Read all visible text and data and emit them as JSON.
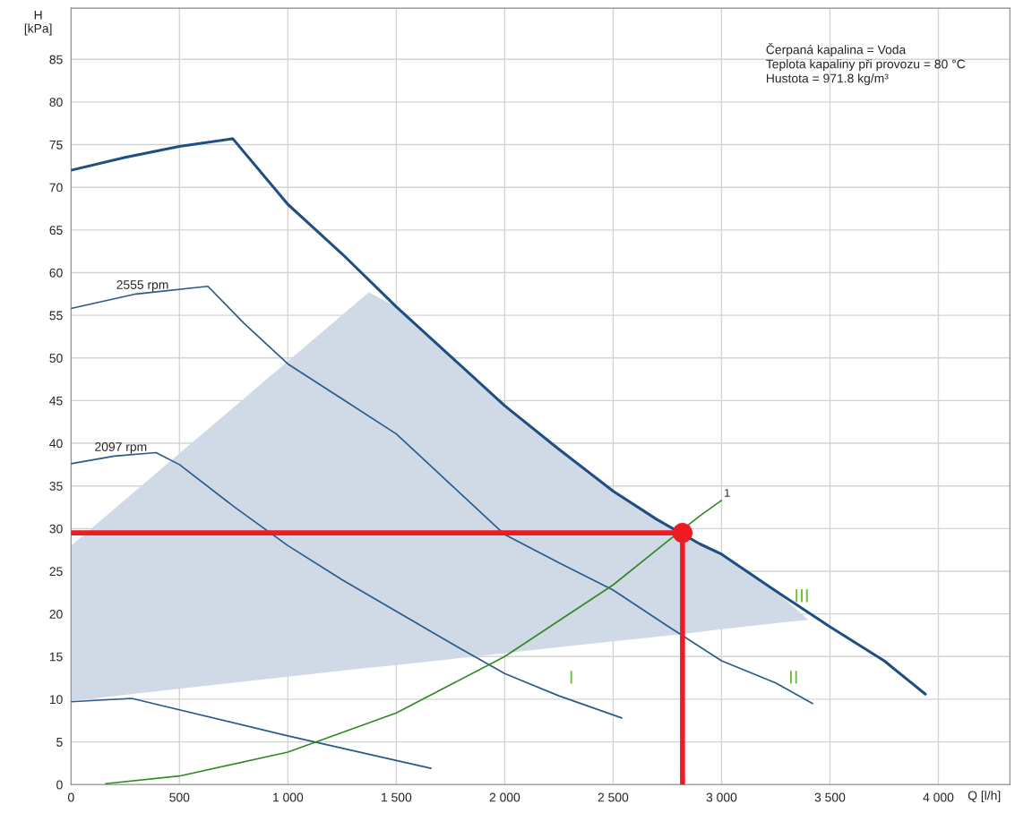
{
  "chart_data": {
    "type": "line",
    "xlabel": "Q [l/h]",
    "ylabel": "H\n[kPa]",
    "xlim": [
      0,
      4330
    ],
    "ylim": [
      0,
      91
    ],
    "xticks": [
      0,
      500,
      {
        "value": 1000,
        "label": "1 000"
      },
      {
        "value": 1500,
        "label": "1 500"
      },
      {
        "value": 2000,
        "label": "2 000"
      },
      {
        "value": 2500,
        "label": "2 500"
      },
      {
        "value": 3000,
        "label": "3 000"
      },
      {
        "value": 3500,
        "label": "3 500"
      },
      {
        "value": 4000,
        "label": "4 000"
      }
    ],
    "yticks": [
      0,
      5,
      10,
      15,
      20,
      25,
      30,
      35,
      40,
      45,
      50,
      55,
      60,
      65,
      70,
      75,
      80,
      85
    ],
    "grid": true,
    "series": [
      {
        "color": "#cfdae6",
        "x": [
          0,
          1373,
          1500,
          1750,
          2000,
          2250,
          2500,
          2700,
          2900,
          3000,
          3250,
          3400
        ],
        "values": [
          null,
          null,
          null,
          null,
          null,
          null,
          null,
          null,
          null,
          null,
          null,
          null
        ],
        "upper": [
          28,
          57.7,
          56,
          50.2,
          44.4,
          39.3,
          34.4,
          31.1,
          28.2,
          27,
          22.7,
          19.3
        ],
        "lower": [
          9.8,
          13.7,
          14,
          14.7,
          15.4,
          16.1,
          16.8,
          17.3,
          17.9,
          18.2,
          18.9,
          19.3
        ]
      },
      {
        "color": "#1f4e82",
        "x": [
          0,
          250,
          500,
          746,
          1000,
          1250,
          1500,
          1750,
          2000,
          2250,
          2500,
          2700,
          2900,
          3000,
          3250,
          3500,
          3750,
          3940
        ],
        "values": [
          72,
          73.5,
          74.8,
          75.7,
          68,
          62.2,
          56,
          50.2,
          44.4,
          39.3,
          34.4,
          31.1,
          28.2,
          27,
          22.7,
          18.5,
          14.5,
          10.6
        ]
      },
      {
        "name": "2555 rpm",
        "color": "#2a5a8c",
        "x": [
          0,
          300,
          631,
          800,
          1000,
          1250,
          1500,
          1750,
          2000,
          2250,
          2500,
          2750,
          3000,
          3250,
          3420
        ],
        "values": [
          55.8,
          57.5,
          58.4,
          54,
          49.3,
          45.2,
          41.1,
          35.2,
          29.3,
          26,
          22.8,
          18.6,
          14.5,
          11.9,
          9.5
        ]
      },
      {
        "name": "2097 rpm",
        "color": "#2a5a8c",
        "x": [
          0,
          200,
          392,
          500,
          750,
          1000,
          1250,
          1500,
          1750,
          2000,
          2250,
          2540
        ],
        "values": [
          37.6,
          38.5,
          38.9,
          37.5,
          32.6,
          28,
          24,
          20.3,
          16.6,
          13,
          10.4,
          7.8
        ]
      },
      {
        "color": "#2a5a8c",
        "x": [
          0,
          280,
          1000,
          1660
        ],
        "values": [
          9.7,
          10.1,
          5.7,
          1.9
        ]
      },
      {
        "name": "1",
        "color": "#2e8b22",
        "x": [
          160,
          500,
          1000,
          1500,
          2000,
          2500,
          2750,
          2900,
          3000
        ],
        "values": [
          0.1,
          1,
          3.8,
          8.4,
          15,
          23.4,
          28.5,
          31.5,
          33.3
        ]
      },
      {
        "color": "#ed1c24",
        "x": [
          0,
          2820,
          2820
        ],
        "values": [
          29.5,
          29.5,
          0
        ]
      },
      {
        "type": "scatter",
        "color": "#ed1c24",
        "marker": "circle",
        "x": [
          2820
        ],
        "values": [
          29.5
        ]
      }
    ],
    "annotations": [
      "I",
      "II",
      "III",
      "Čerpaná kapalina = Voda\nTeplota kapaliny při provozu = 80 °C\nHustota = 971.8 kg/m³"
    ]
  }
}
